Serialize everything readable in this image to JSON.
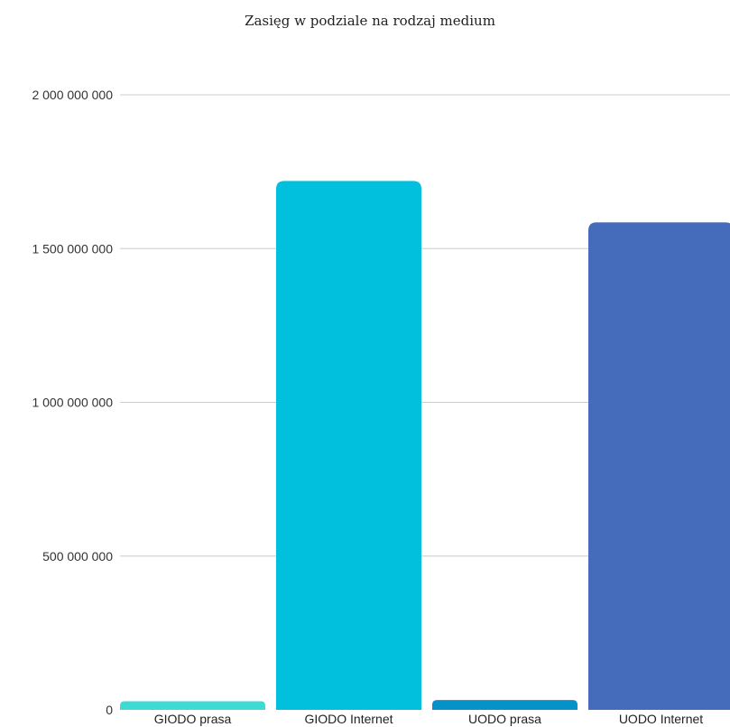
{
  "chart_data": {
    "type": "bar",
    "title": "Zasięg w podziale na rodzaj medium",
    "xlabel": "",
    "ylabel": "",
    "categories": [
      "GIODO prasa",
      "GIODO Internet",
      "UODO prasa",
      "UODO Internet"
    ],
    "values": [
      28000000,
      1720000000,
      32000000,
      1585000000
    ],
    "colors": [
      "#3ddbd4",
      "#00c0de",
      "#0592c8",
      "#456cba"
    ],
    "ylim": [
      0,
      2000000000
    ],
    "yticks": [
      0,
      500000000,
      1000000000,
      1500000000,
      2000000000
    ],
    "ytick_labels": [
      "0",
      "500 000 000",
      "1 000 000 000",
      "1 500 000 000",
      "2 000 000 000"
    ],
    "grid": true,
    "legend": "none"
  }
}
